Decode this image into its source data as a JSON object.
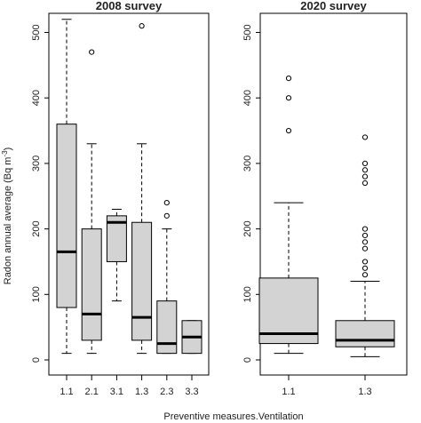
{
  "chart_data": {
    "type": "boxplot",
    "xlabel": "Preventive measures.Ventilation",
    "ylabel": "Radon annual average (Bq m",
    "ylabel_sup": "-3",
    "ylabel_end": ")",
    "ylim": [
      0,
      520
    ],
    "yticks": [
      0,
      100,
      200,
      300,
      400,
      500
    ],
    "panels": [
      {
        "title": "2008 survey",
        "categories": [
          "1.1",
          "2.1",
          "3.1",
          "1.3",
          "2.3",
          "3.3"
        ],
        "boxes": [
          {
            "min": 10,
            "q1": 80,
            "median": 165,
            "q3": 360,
            "max": 520,
            "outliers": []
          },
          {
            "min": 10,
            "q1": 30,
            "median": 70,
            "q3": 200,
            "max": 330,
            "outliers": [
              470
            ]
          },
          {
            "min": 90,
            "q1": 150,
            "median": 210,
            "q3": 220,
            "max": 230,
            "outliers": []
          },
          {
            "min": 10,
            "q1": 30,
            "median": 65,
            "q3": 210,
            "max": 330,
            "outliers": [
              510
            ]
          },
          {
            "min": 10,
            "q1": 10,
            "median": 25,
            "q3": 90,
            "max": 200,
            "outliers": [
              220,
              240
            ]
          },
          {
            "min": 10,
            "q1": 10,
            "median": 35,
            "q3": 60,
            "max": 60,
            "outliers": []
          }
        ]
      },
      {
        "title": "2020 survey",
        "categories": [
          "1.1",
          "1.3"
        ],
        "boxes": [
          {
            "min": 10,
            "q1": 25,
            "median": 40,
            "q3": 125,
            "max": 240,
            "outliers": [
              350,
              400,
              430
            ]
          },
          {
            "min": 5,
            "q1": 20,
            "median": 30,
            "q3": 60,
            "max": 120,
            "outliers": [
              130,
              140,
              150,
              170,
              180,
              190,
              200,
              270,
              280,
              290,
              300,
              340
            ]
          }
        ]
      }
    ],
    "colors": {
      "box_fill": "#d3d3d3",
      "stroke": "#000000"
    }
  }
}
